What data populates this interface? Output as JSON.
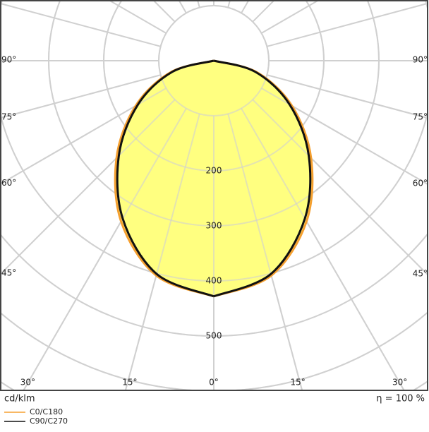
{
  "chart_data": {
    "type": "polar",
    "unit_label": "cd/klm",
    "efficiency_label": "η = 100 %",
    "gamma": [
      0,
      15,
      30,
      45,
      60,
      75,
      90
    ],
    "series": [
      {
        "name": "C0/C180",
        "color": "#f5a030",
        "values": [
          428,
          404,
          337,
          250,
          164,
          81,
          0
        ]
      },
      {
        "name": "C90/C270",
        "color": "#111111",
        "values": [
          428,
          401,
          331,
          244,
          159,
          78,
          0
        ]
      }
    ],
    "fill": "#ffff80",
    "rlim": [
      0,
      700
    ],
    "rticks": [
      {
        "value": 100,
        "label": null
      },
      200,
      300,
      400,
      500,
      {
        "value": 600,
        "label": null
      },
      {
        "value": 700,
        "label": null
      }
    ],
    "angle_ticks": [
      {
        "value": -90,
        "label": "90°"
      },
      {
        "value": -75,
        "label": "75°"
      },
      {
        "value": -60,
        "label": "60°"
      },
      {
        "value": -45,
        "label": "45°"
      },
      {
        "value": -30,
        "label": "30°"
      },
      {
        "value": -15,
        "label": "15°"
      },
      {
        "value": 0,
        "label": "0°"
      },
      {
        "value": 15,
        "label": "15°"
      },
      {
        "value": 30,
        "label": "30°"
      },
      {
        "value": 45,
        "label": "45°"
      },
      {
        "value": 60,
        "label": "60°"
      },
      {
        "value": 75,
        "label": "75°"
      },
      {
        "value": 90,
        "label": "90°"
      }
    ]
  }
}
